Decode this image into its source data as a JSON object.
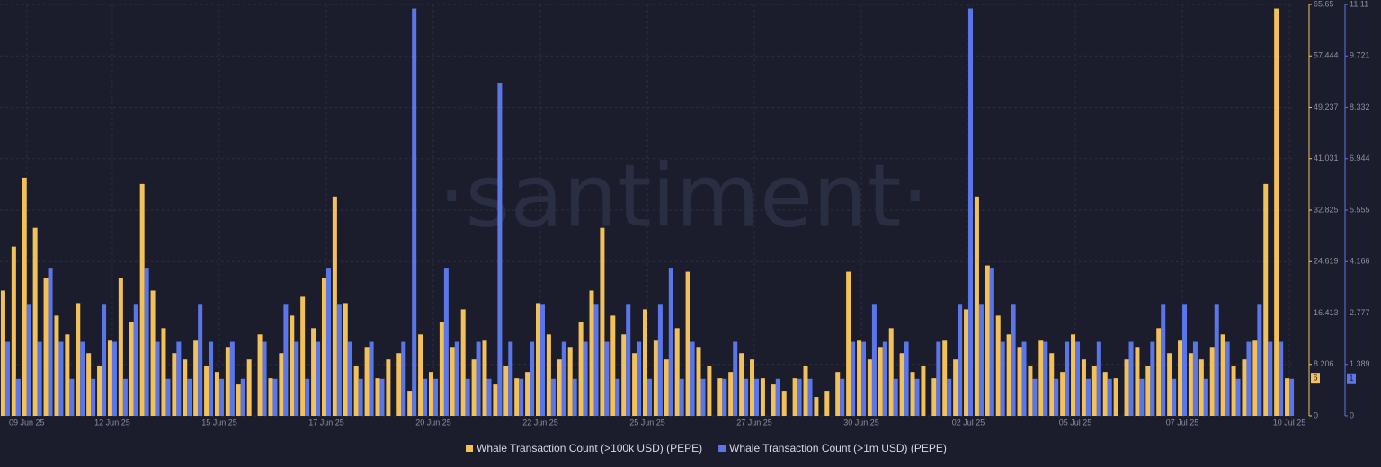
{
  "chart_data": {
    "type": "bar",
    "watermark": "·santiment·",
    "categories": [
      null,
      null,
      "09 Jun 25",
      null,
      null,
      null,
      null,
      null,
      null,
      null,
      "12 Jun 25",
      null,
      null,
      null,
      null,
      null,
      null,
      null,
      null,
      null,
      "15 Jun 25",
      null,
      null,
      null,
      null,
      null,
      null,
      null,
      null,
      null,
      "17 Jun 25",
      null,
      null,
      null,
      null,
      null,
      null,
      null,
      null,
      null,
      "20 Jun 25",
      null,
      null,
      null,
      null,
      null,
      null,
      null,
      null,
      null,
      "22 Jun 25",
      null,
      null,
      null,
      null,
      null,
      null,
      null,
      null,
      null,
      "25 Jun 25",
      null,
      null,
      null,
      null,
      null,
      null,
      null,
      null,
      null,
      "27 Jun 25",
      null,
      null,
      null,
      null,
      null,
      null,
      null,
      null,
      null,
      "30 Jun 25",
      null,
      null,
      null,
      null,
      null,
      null,
      null,
      null,
      null,
      "02 Jul 25",
      null,
      null,
      null,
      null,
      null,
      null,
      null,
      null,
      null,
      "05 Jul 25",
      null,
      null,
      null,
      null,
      null,
      null,
      null,
      null,
      null,
      "07 Jul 25",
      null,
      null,
      null,
      null,
      null,
      null,
      null,
      null,
      null,
      "10 Jul 25"
    ],
    "series": [
      {
        "name": "Whale Transaction Count (>100k USD) (PEPE)",
        "color": "#f3c15a",
        "axis": "y",
        "values": [
          20,
          27,
          38,
          30,
          22,
          16,
          13,
          18,
          10,
          8,
          12,
          22,
          15,
          37,
          20,
          14,
          10,
          9,
          12,
          8,
          7,
          11,
          5,
          9,
          13,
          6,
          10,
          16,
          19,
          14,
          22,
          35,
          18,
          8,
          11,
          6,
          9,
          10,
          4,
          13,
          7,
          15,
          11,
          17,
          9,
          12,
          5,
          8,
          6,
          7,
          18,
          13,
          9,
          11,
          15,
          20,
          30,
          16,
          13,
          10,
          17,
          12,
          9,
          14,
          23,
          11,
          8,
          6,
          7,
          10,
          9,
          6,
          5,
          4,
          6,
          8,
          3,
          4,
          7,
          23,
          12,
          9,
          11,
          14,
          10,
          7,
          8,
          6,
          12,
          9,
          17,
          35,
          24,
          16,
          13,
          11,
          8,
          12,
          10,
          7,
          13,
          9,
          8,
          7,
          6,
          9,
          11,
          8,
          14,
          10,
          12,
          10,
          9,
          11,
          13,
          8,
          9,
          12,
          37,
          65,
          6
        ]
      },
      {
        "name": "Whale Transaction Count (>1m USD) (PEPE)",
        "color": "#5b76e8",
        "axis": "y2",
        "values": [
          2,
          1,
          3,
          2,
          4,
          2,
          1,
          2,
          1,
          3,
          2,
          1,
          3,
          4,
          2,
          1,
          2,
          1,
          3,
          2,
          1,
          2,
          1,
          0,
          2,
          1,
          3,
          2,
          1,
          2,
          4,
          3,
          2,
          1,
          2,
          1,
          0,
          2,
          11,
          1,
          1,
          4,
          2,
          1,
          2,
          1,
          9,
          2,
          1,
          2,
          3,
          1,
          2,
          1,
          2,
          3,
          2,
          1,
          3,
          2,
          1,
          3,
          4,
          1,
          2,
          1,
          0,
          1,
          2,
          1,
          1,
          0,
          1,
          0,
          1,
          1,
          0,
          0,
          1,
          2,
          2,
          3,
          2,
          1,
          2,
          1,
          0,
          2,
          1,
          3,
          11,
          3,
          4,
          2,
          3,
          2,
          1,
          2,
          1,
          2,
          2,
          1,
          2,
          1,
          0,
          2,
          1,
          2,
          3,
          1,
          3,
          2,
          1,
          3,
          2,
          1,
          2,
          3,
          2,
          2,
          1
        ]
      }
    ],
    "ylim": [
      0,
      65.65
    ],
    "yticks": [
      0,
      8.206,
      16.413,
      24.619,
      32.825,
      41.031,
      49.237,
      57.444,
      65.65
    ],
    "y2lim": [
      0,
      11.11
    ],
    "y2ticks": [
      0,
      1.389,
      2.777,
      4.166,
      5.555,
      6.944,
      8.332,
      9.721,
      11.11
    ],
    "grid": true,
    "legend": "bottom"
  }
}
